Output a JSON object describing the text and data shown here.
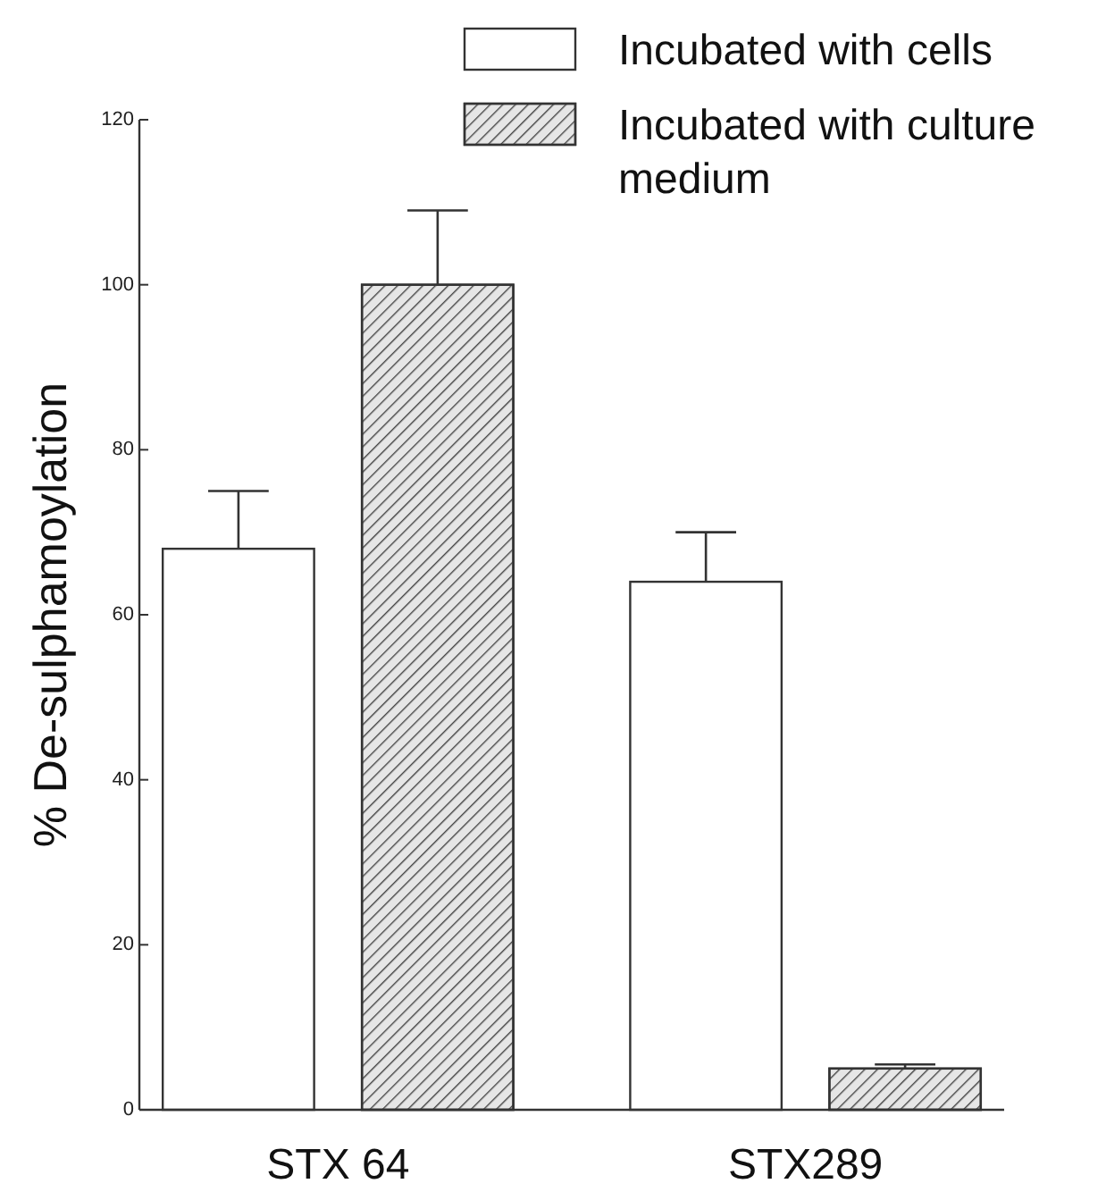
{
  "chart_data": {
    "type": "bar",
    "ylabel": "% De-sulphamoylation",
    "categories": [
      "STX 64",
      "STX289"
    ],
    "series": [
      {
        "name": "Incubated with cells",
        "color": "#ffffff",
        "values": [
          68,
          64
        ],
        "errors": [
          [
            68,
            75
          ],
          [
            64,
            70
          ]
        ]
      },
      {
        "name": "Incubated with culture medium",
        "color": "#e6e6e6",
        "values": [
          100,
          5
        ],
        "errors": [
          [
            100,
            109
          ],
          [
            5,
            5.5
          ]
        ]
      }
    ],
    "ylim": [
      0,
      120
    ],
    "yticks": [
      0,
      20,
      40,
      60,
      80,
      100,
      120
    ],
    "legend": "top right"
  }
}
